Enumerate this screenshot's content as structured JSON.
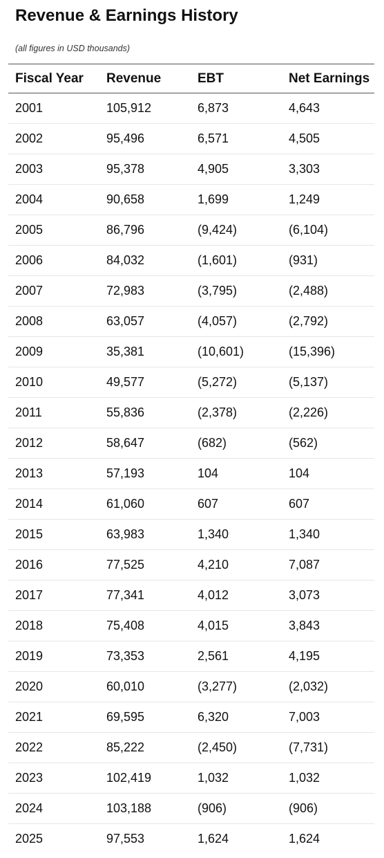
{
  "title": "Revenue & Earnings History",
  "subtitle": "(all figures in USD thousands)",
  "table": {
    "headers": [
      "Fiscal Year",
      "Revenue",
      "EBT",
      "Net Earnings"
    ],
    "rows": [
      [
        "2001",
        "105,912",
        "6,873",
        "4,643"
      ],
      [
        "2002",
        "95,496",
        "6,571",
        "4,505"
      ],
      [
        "2003",
        "95,378",
        "4,905",
        "3,303"
      ],
      [
        "2004",
        "90,658",
        "1,699",
        "1,249"
      ],
      [
        "2005",
        "86,796",
        "(9,424)",
        "(6,104)"
      ],
      [
        "2006",
        "84,032",
        "(1,601)",
        "(931)"
      ],
      [
        "2007",
        "72,983",
        "(3,795)",
        "(2,488)"
      ],
      [
        "2008",
        "63,057",
        "(4,057)",
        "(2,792)"
      ],
      [
        "2009",
        "35,381",
        "(10,601)",
        "(15,396)"
      ],
      [
        "2010",
        "49,577",
        "(5,272)",
        "(5,137)"
      ],
      [
        "2011",
        "55,836",
        "(2,378)",
        "(2,226)"
      ],
      [
        "2012",
        "58,647",
        "(682)",
        "(562)"
      ],
      [
        "2013",
        "57,193",
        "104",
        "104"
      ],
      [
        "2014",
        "61,060",
        "607",
        "607"
      ],
      [
        "2015",
        "63,983",
        "1,340",
        "1,340"
      ],
      [
        "2016",
        "77,525",
        "4,210",
        "7,087"
      ],
      [
        "2017",
        "77,341",
        "4,012",
        "3,073"
      ],
      [
        "2018",
        "75,408",
        "4,015",
        "3,843"
      ],
      [
        "2019",
        "73,353",
        "2,561",
        "4,195"
      ],
      [
        "2020",
        "60,010",
        "(3,277)",
        "(2,032)"
      ],
      [
        "2021",
        "69,595",
        "6,320",
        "7,003"
      ],
      [
        "2022",
        "85,222",
        "(2,450)",
        "(7,731)"
      ],
      [
        "2023",
        "102,419",
        "1,032",
        "1,032"
      ],
      [
        "2024",
        "103,188",
        "(906)",
        "(906)"
      ],
      [
        "2025",
        "97,553",
        "1,624",
        "1,624"
      ]
    ]
  }
}
